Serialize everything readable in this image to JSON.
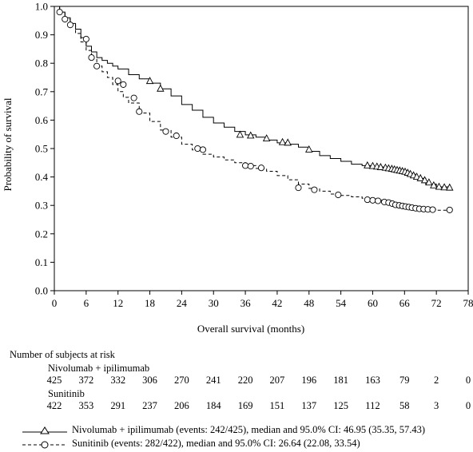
{
  "chart_data": {
    "type": "line",
    "title": "",
    "xlabel": "Overall survival (months)",
    "ylabel": "Probability of survival",
    "xlim": [
      0,
      78
    ],
    "ylim": [
      0.0,
      1.0
    ],
    "x_ticks": [
      "0",
      "6",
      "12",
      "18",
      "24",
      "30",
      "36",
      "42",
      "48",
      "54",
      "60",
      "66",
      "72",
      "78"
    ],
    "y_ticks": [
      "0.0",
      "0.1",
      "0.2",
      "0.3",
      "0.4",
      "0.5",
      "0.6",
      "0.7",
      "0.8",
      "0.9",
      "1.0"
    ],
    "grid": false,
    "legend_position": "bottom",
    "series": [
      {
        "name": "Nivolumab + ipilimumab (events: 242/425), median and 95.0% CI: 46.95 (35.35, 57.43)",
        "line_style": "solid",
        "marker": "triangle",
        "x": [
          0,
          1,
          2,
          3,
          4,
          5,
          6,
          7,
          8,
          9,
          10,
          11,
          12,
          14,
          16,
          18,
          20,
          22,
          24,
          26,
          28,
          30,
          32,
          34,
          36,
          38,
          40,
          42,
          44,
          46,
          48,
          50,
          52,
          54,
          56,
          58,
          60,
          62,
          64,
          66,
          68,
          70,
          72,
          74.5
        ],
        "y": [
          1.0,
          0.98,
          0.96,
          0.94,
          0.92,
          0.89,
          0.86,
          0.84,
          0.82,
          0.81,
          0.8,
          0.79,
          0.78,
          0.76,
          0.745,
          0.73,
          0.71,
          0.685,
          0.655,
          0.635,
          0.61,
          0.59,
          0.575,
          0.56,
          0.548,
          0.54,
          0.53,
          0.52,
          0.515,
          0.505,
          0.49,
          0.475,
          0.465,
          0.455,
          0.445,
          0.44,
          0.435,
          0.43,
          0.42,
          0.41,
          0.395,
          0.375,
          0.365,
          0.362
        ],
        "marker_x": [
          18,
          20,
          35,
          37,
          40,
          43,
          44,
          48,
          59,
          60,
          60.8,
          61.5,
          62.4,
          63,
          63.6,
          64.1,
          64.6,
          65.1,
          65.6,
          66.1,
          66.6,
          67.1,
          67.7,
          68.3,
          69,
          69.8,
          70.6,
          71.5,
          72.5,
          73.5,
          74.5
        ],
        "marker_y": [
          0.737,
          0.71,
          0.548,
          0.545,
          0.535,
          0.522,
          0.52,
          0.496,
          0.44,
          0.438,
          0.436,
          0.434,
          0.432,
          0.43,
          0.428,
          0.426,
          0.424,
          0.422,
          0.42,
          0.418,
          0.414,
          0.41,
          0.405,
          0.4,
          0.395,
          0.388,
          0.38,
          0.37,
          0.365,
          0.363,
          0.362
        ]
      },
      {
        "name": "Sunitinib (events: 282/422), median and 95.0% CI: 26.64 (22.08, 33.54)",
        "line_style": "dashed",
        "marker": "circle",
        "x": [
          0,
          1,
          2,
          3,
          4,
          5,
          6,
          7,
          8,
          9,
          10,
          11,
          12,
          13,
          14,
          16,
          18,
          20,
          22,
          24,
          26,
          28,
          30,
          32,
          34,
          36,
          38,
          40,
          42,
          44,
          46,
          48,
          50,
          52,
          54,
          56,
          58,
          60,
          62,
          64,
          66,
          68,
          70,
          72,
          74.5
        ],
        "y": [
          1.0,
          0.98,
          0.955,
          0.935,
          0.905,
          0.875,
          0.845,
          0.815,
          0.79,
          0.77,
          0.75,
          0.725,
          0.7,
          0.68,
          0.66,
          0.625,
          0.595,
          0.565,
          0.54,
          0.515,
          0.495,
          0.48,
          0.47,
          0.46,
          0.45,
          0.44,
          0.43,
          0.42,
          0.405,
          0.39,
          0.375,
          0.36,
          0.35,
          0.34,
          0.335,
          0.33,
          0.325,
          0.318,
          0.31,
          0.3,
          0.295,
          0.29,
          0.286,
          0.283,
          0.282
        ],
        "marker_x": [
          1,
          2,
          3,
          6,
          7,
          8,
          12,
          13,
          15,
          16,
          21,
          23,
          27,
          28,
          36,
          37,
          39,
          46,
          49,
          53.5,
          59,
          60,
          61,
          62.2,
          63,
          63.7,
          64.3,
          65,
          65.6,
          66.2,
          66.8,
          67.4,
          68.1,
          68.8,
          69.6,
          70.4,
          71.3,
          74.5
        ],
        "marker_y": [
          0.98,
          0.955,
          0.935,
          0.885,
          0.82,
          0.79,
          0.738,
          0.725,
          0.678,
          0.63,
          0.56,
          0.545,
          0.5,
          0.496,
          0.44,
          0.438,
          0.432,
          0.362,
          0.355,
          0.337,
          0.32,
          0.318,
          0.316,
          0.312,
          0.31,
          0.306,
          0.302,
          0.3,
          0.298,
          0.296,
          0.294,
          0.292,
          0.29,
          0.288,
          0.287,
          0.286,
          0.285,
          0.284
        ]
      }
    ]
  },
  "risk_table": {
    "title": "Number of subjects at risk",
    "times": [
      0,
      6,
      12,
      18,
      24,
      30,
      36,
      42,
      48,
      54,
      60,
      66,
      72,
      78
    ],
    "groups": [
      {
        "name": "Nivolumab + ipilimumab",
        "counts": [
          "425",
          "372",
          "332",
          "306",
          "270",
          "241",
          "220",
          "207",
          "196",
          "181",
          "163",
          "79",
          "2",
          "0"
        ]
      },
      {
        "name": "Sunitinib",
        "counts": [
          "422",
          "353",
          "291",
          "237",
          "206",
          "184",
          "169",
          "151",
          "137",
          "125",
          "112",
          "58",
          "3",
          "0"
        ]
      }
    ]
  },
  "legend": {
    "items": [
      {
        "label": "Nivolumab + ipilimumab (events: 242/425), median and 95.0% CI: 46.95 (35.35, 57.43)",
        "style": "solid",
        "marker": "triangle"
      },
      {
        "label": "Sunitinib (events: 282/422), median and 95.0% CI: 26.64 (22.08, 33.54)",
        "style": "dashed",
        "marker": "circle"
      }
    ]
  }
}
